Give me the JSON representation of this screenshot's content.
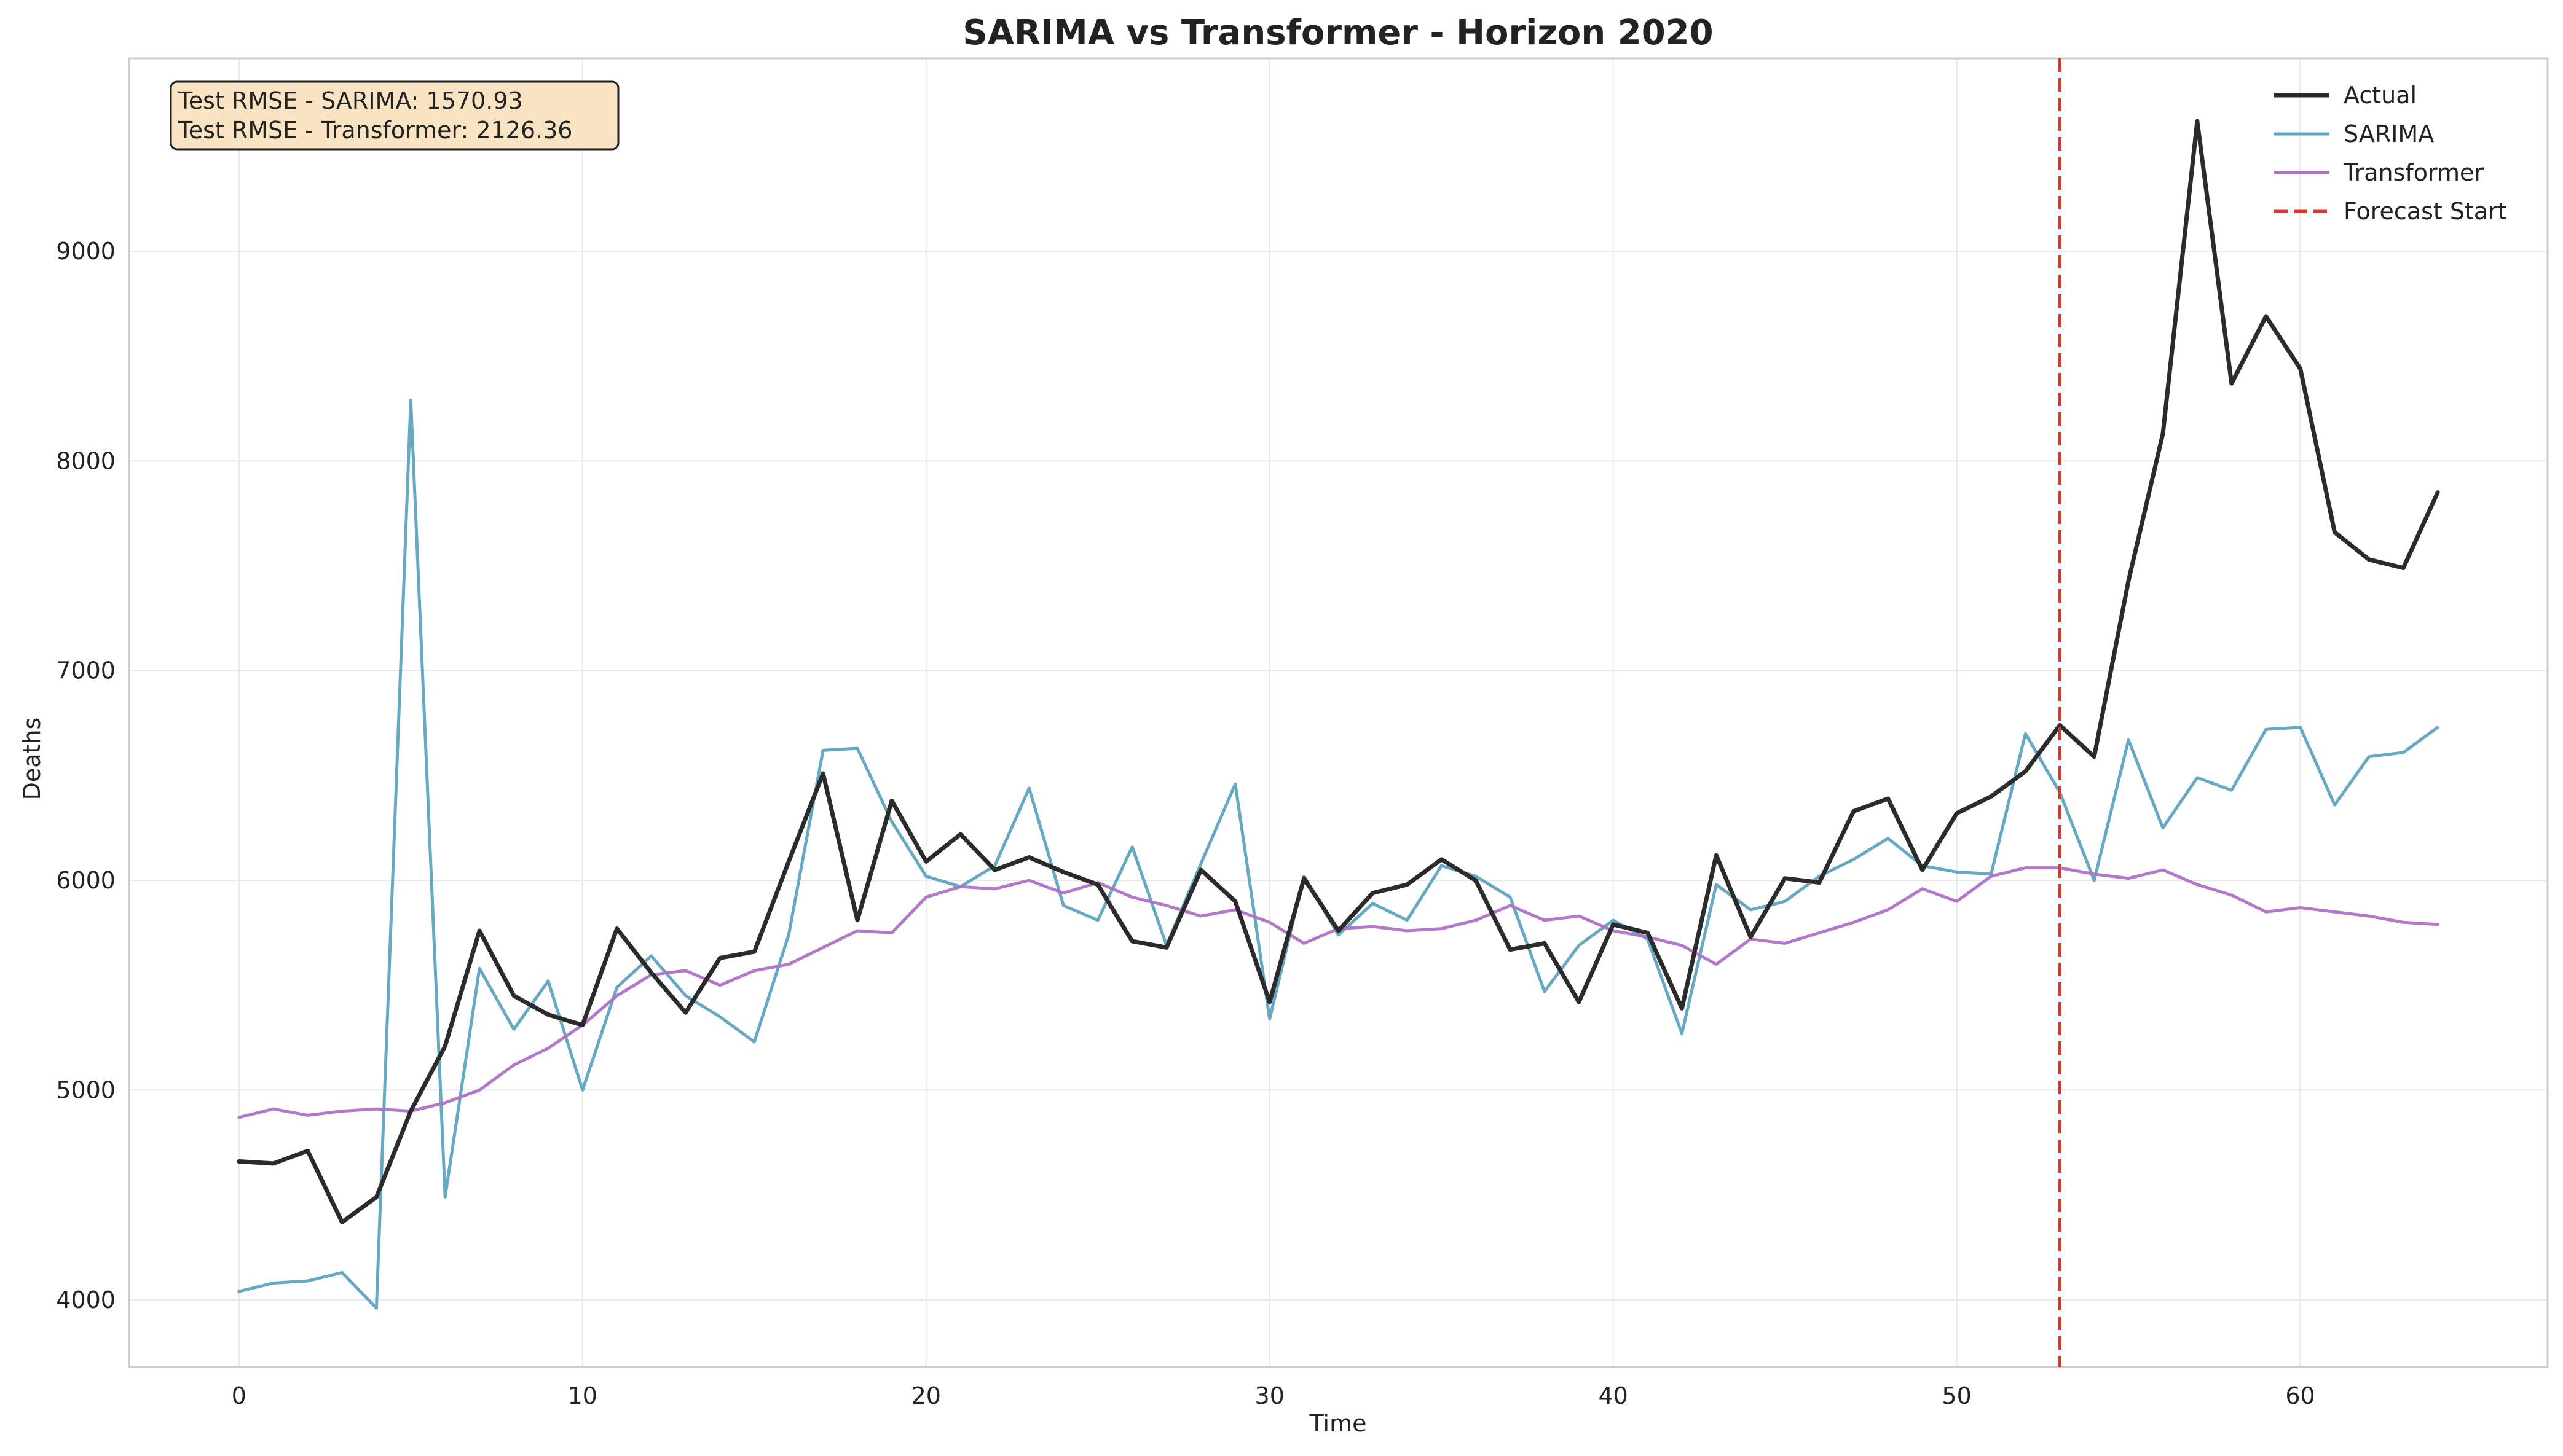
{
  "chart_data": {
    "type": "line",
    "title": "SARIMA vs Transformer - Horizon 2020",
    "xlabel": "Time",
    "ylabel": "Deaths",
    "xlim": [
      -3.2,
      67.2
    ],
    "ylim": [
      3680,
      9920
    ],
    "xticks": [
      0,
      10,
      20,
      30,
      40,
      50,
      60
    ],
    "yticks": [
      4000,
      5000,
      6000,
      7000,
      8000,
      9000
    ],
    "grid": true,
    "legend_position": "top-right",
    "annotation": {
      "lines": [
        "Test RMSE - SARIMA: 1570.93",
        "Test RMSE - Transformer: 2126.36"
      ]
    },
    "forecast_start": {
      "x": 53,
      "label": "Forecast Start",
      "color": "#e8302f"
    },
    "series": [
      {
        "name": "Actual",
        "color": "#2b2b2b",
        "width": 7,
        "values": [
          4660,
          4650,
          4710,
          4370,
          4490,
          4900,
          5210,
          5760,
          5450,
          5360,
          5310,
          5770,
          5560,
          5370,
          5630,
          5660,
          6090,
          6510,
          5810,
          6380,
          6090,
          6220,
          6050,
          6110,
          6040,
          5980,
          5710,
          5680,
          6050,
          5900,
          5420,
          6010,
          5760,
          5940,
          5980,
          6100,
          6000,
          5670,
          5700,
          5420,
          5790,
          5750,
          5390,
          6120,
          5730,
          6010,
          5990,
          6330,
          6390,
          6050,
          6320,
          6400,
          6520,
          6740,
          6590,
          7430,
          8130,
          9620,
          8370,
          8690,
          8440,
          7660,
          7530,
          7490,
          7850
        ]
      },
      {
        "name": "SARIMA",
        "color": "#5fa4bf",
        "width": 5,
        "values": [
          4040,
          4080,
          4090,
          4130,
          3960,
          8290,
          4490,
          5580,
          5290,
          5520,
          5000,
          5490,
          5640,
          5450,
          5350,
          5230,
          5740,
          6620,
          6630,
          6280,
          6020,
          5970,
          6070,
          6440,
          5880,
          5810,
          6160,
          5690,
          6080,
          6460,
          5340,
          6020,
          5740,
          5890,
          5810,
          6070,
          6020,
          5920,
          5470,
          5690,
          5810,
          5720,
          5270,
          5980,
          5860,
          5900,
          6020,
          6100,
          6200,
          6070,
          6040,
          6030,
          6700,
          6420,
          6000,
          6670,
          6250,
          6490,
          6430,
          6720,
          6730,
          6360,
          6590,
          6610,
          6730
        ]
      },
      {
        "name": "Transformer",
        "color": "#ae72c8",
        "width": 5,
        "values": [
          4870,
          4910,
          4880,
          4900,
          4910,
          4900,
          4940,
          5000,
          5120,
          5200,
          5310,
          5450,
          5550,
          5570,
          5500,
          5570,
          5600,
          5680,
          5760,
          5750,
          5920,
          5970,
          5960,
          6000,
          5940,
          5990,
          5920,
          5880,
          5830,
          5860,
          5800,
          5700,
          5770,
          5780,
          5760,
          5770,
          5810,
          5880,
          5810,
          5830,
          5760,
          5730,
          5690,
          5600,
          5720,
          5700,
          5750,
          5800,
          5860,
          5960,
          5900,
          6020,
          6060,
          6060,
          6030,
          6010,
          6050,
          5980,
          5930,
          5850,
          5870,
          5850,
          5830,
          5800,
          5790
        ]
      }
    ]
  }
}
